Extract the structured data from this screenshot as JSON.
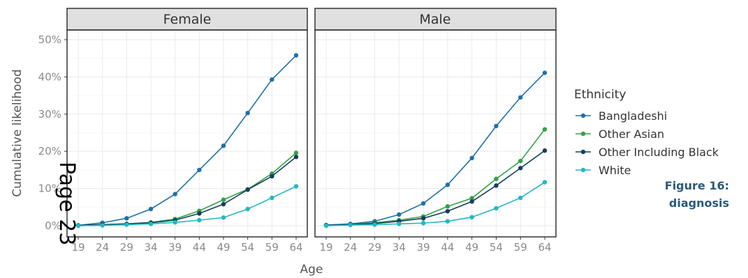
{
  "chart_data": {
    "type": "line",
    "xlabel": "Age",
    "ylabel": "Cumulative likelihood",
    "x": [
      19,
      24,
      29,
      34,
      39,
      44,
      49,
      54,
      59,
      64
    ],
    "x_tick_labels": [
      "19",
      "24",
      "29",
      "34",
      "39",
      "44",
      "49",
      "54",
      "59",
      "64"
    ],
    "y_ticks": [
      0,
      10,
      20,
      30,
      40,
      50
    ],
    "y_tick_labels": [
      "0%",
      "10%",
      "20%",
      "30%",
      "40%",
      "50%"
    ],
    "ylim": [
      0,
      50
    ],
    "grid": true,
    "legend": {
      "title": "Ethnicity",
      "placement": "right",
      "entries": [
        "Bangladeshi",
        "Other Asian",
        "Other Including Black",
        "White"
      ]
    },
    "colors": {
      "Bangladeshi": "#1f6fa8",
      "Other Asian": "#33a047",
      "Other Including Black": "#163e5c",
      "White": "#20b8c3"
    },
    "panels": [
      {
        "label": "Female",
        "series": [
          {
            "name": "Bangladeshi",
            "values": [
              0.1,
              0.8,
              2.0,
              4.5,
              8.5,
              15.0,
              21.5,
              30.3,
              39.3,
              45.8
            ]
          },
          {
            "name": "Other Asian",
            "values": [
              0.1,
              0.3,
              0.5,
              0.9,
              1.8,
              4.0,
              7.0,
              9.8,
              14.0,
              19.6
            ]
          },
          {
            "name": "Other Including Black",
            "values": [
              0.1,
              0.3,
              0.5,
              0.8,
              1.5,
              3.3,
              5.8,
              9.7,
              13.3,
              18.5
            ]
          },
          {
            "name": "White",
            "values": [
              0.0,
              0.1,
              0.3,
              0.5,
              0.9,
              1.5,
              2.2,
              4.5,
              7.5,
              10.6
            ]
          }
        ]
      },
      {
        "label": "Male",
        "series": [
          {
            "name": "Bangladeshi",
            "values": [
              0.2,
              0.5,
              1.2,
              3.0,
              6.0,
              11.0,
              18.2,
              26.8,
              34.5,
              41.1
            ]
          },
          {
            "name": "Other Asian",
            "values": [
              0.1,
              0.3,
              0.8,
              1.5,
              2.5,
              5.2,
              7.4,
              12.6,
              17.4,
              25.9
            ]
          },
          {
            "name": "Other Including Black",
            "values": [
              0.1,
              0.3,
              0.6,
              1.2,
              2.0,
              3.9,
              6.5,
              10.8,
              15.5,
              20.2
            ]
          },
          {
            "name": "White",
            "values": [
              0.0,
              0.2,
              0.3,
              0.5,
              0.7,
              1.2,
              2.3,
              4.7,
              7.5,
              11.7
            ]
          }
        ]
      }
    ]
  },
  "caption": {
    "line1": "Figure 16:",
    "line2": "diagnosis"
  },
  "page_stamp": "Page 23"
}
